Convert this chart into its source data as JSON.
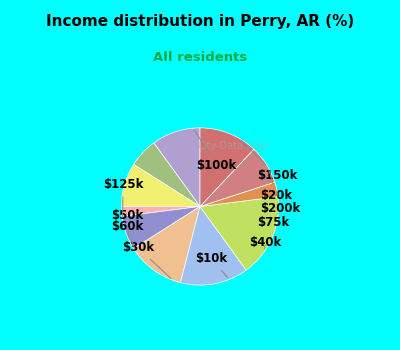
{
  "title": "Income distribution in Perry, AR (%)",
  "subtitle": "All residents",
  "title_color": "#000000",
  "subtitle_color": "#00aa44",
  "background_top": "#00ffff",
  "background_chart": "#e8f5ee",
  "watermark": "City-Data.com",
  "labels": [
    "$100k",
    "$150k",
    "$20k",
    "$200k",
    "$75k",
    "$40k",
    "$10k",
    "$30k",
    "$60k",
    "$50k",
    "$125k"
  ],
  "values": [
    10,
    6,
    9,
    2,
    7,
    12,
    14,
    17,
    3,
    8,
    12
  ],
  "colors": [
    "#b0a0d0",
    "#a0c080",
    "#f0f070",
    "#ffb0b0",
    "#9090d0",
    "#f0c090",
    "#a0c0f0",
    "#c0e060",
    "#e09050",
    "#d08080",
    "#d07070"
  ],
  "startangle": 90,
  "label_fontsize": 8.5,
  "connector_color": "auto"
}
